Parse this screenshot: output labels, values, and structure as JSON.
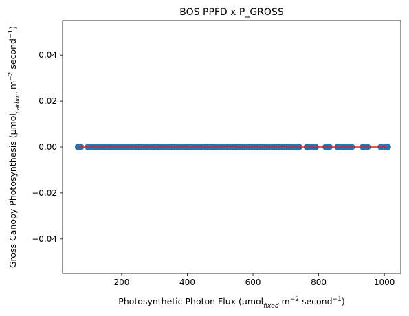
{
  "chart_data": {
    "type": "scatter",
    "title": "BOS PPFD x P_GROSS",
    "xlabel": {
      "prefix": "Photosynthetic Photon Flux (µmol",
      "sub": "fixed",
      "middle": " m",
      "sup1": "−2",
      "after": " second",
      "sup2": "−1",
      "suffix": ")"
    },
    "ylabel": {
      "prefix": "Gross Canopy Photosynthesis (µmol",
      "sub": "carbon",
      "middle": " m",
      "sup1": "−2",
      "after": " second",
      "sup2": "−1",
      "suffix": ")"
    },
    "xlim": [
      20,
      1050
    ],
    "ylim": [
      -0.055,
      0.055
    ],
    "xticks": [
      200,
      400,
      600,
      800,
      1000
    ],
    "xtick_labels": [
      "200",
      "400",
      "600",
      "800",
      "1000"
    ],
    "yticks": [
      -0.04,
      -0.02,
      0.0,
      0.02,
      0.04
    ],
    "ytick_labels": [
      "−0.04",
      "−0.02",
      "0.00",
      "0.02",
      "0.04"
    ],
    "grid": false,
    "colors": {
      "points": "#1f77b4",
      "fit_line": "#d62728"
    },
    "series": [
      {
        "x": [
          68,
          72,
          75,
          98,
          100,
          104,
          110,
          118,
          125,
          132,
          138,
          145,
          150,
          158,
          165,
          170,
          178,
          185,
          192,
          198,
          205,
          212,
          218,
          225,
          232,
          240,
          246,
          252,
          260,
          268,
          275,
          282,
          290,
          296,
          302,
          310,
          318,
          325,
          332,
          340,
          346,
          352,
          360,
          368,
          375,
          382,
          390,
          396,
          402,
          410,
          418,
          425,
          432,
          440,
          446,
          455,
          462,
          470,
          478,
          485,
          492,
          500,
          508,
          515,
          522,
          530,
          538,
          545,
          552,
          560,
          568,
          575,
          582,
          590,
          598,
          605,
          612,
          620,
          628,
          635,
          642,
          650,
          658,
          665,
          672,
          680,
          688,
          695,
          702,
          710,
          718,
          725,
          732,
          740,
          765,
          770,
          775,
          782,
          790,
          822,
          828,
          832,
          858,
          865,
          872,
          878,
          885,
          892,
          900,
          935,
          940,
          948,
          990,
          1005,
          1010
        ],
        "y_value": 0.0
      }
    ],
    "fit_line": {
      "x": [
        68,
        1010
      ],
      "y": [
        0.0,
        0.0
      ]
    }
  }
}
